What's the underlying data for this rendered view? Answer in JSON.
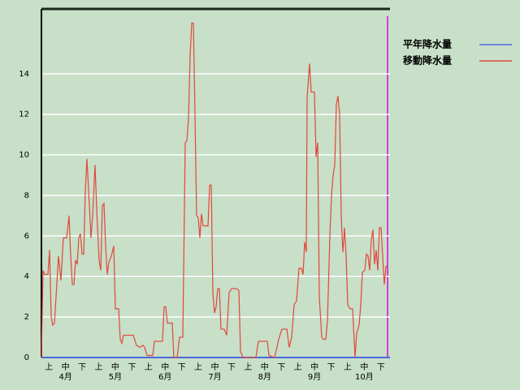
{
  "chart_data": {
    "type": "line",
    "categories": [
      "上",
      "中",
      "下",
      "上",
      "中",
      "下",
      "上",
      "中",
      "下",
      "上",
      "中",
      "下",
      "上",
      "中",
      "下",
      "上",
      "中",
      "下",
      "上",
      "中",
      "下"
    ],
    "months": [
      "4月",
      "5月",
      "6月",
      "7月",
      "8月",
      "9月",
      "10月"
    ],
    "xlim": [
      0,
      214.5
    ],
    "ylim": [
      0,
      17.2
    ],
    "yticks": [
      0,
      2,
      4,
      6,
      8,
      10,
      12,
      14
    ],
    "grid": true,
    "series": [
      {
        "name": "平年降水量",
        "color": "#4a6ae0",
        "x": [
          0,
          214.5
        ],
        "values": [
          0,
          0
        ]
      },
      {
        "name": "移動降水量",
        "color": "#e0483c",
        "x": [
          0,
          1,
          2,
          4,
          5,
          6,
          7,
          8,
          9,
          10.5,
          12,
          13.5,
          15.5,
          17,
          18,
          19,
          20,
          21,
          22,
          23,
          24,
          25,
          26,
          27,
          28,
          29.5,
          30.5,
          31.5,
          33,
          34,
          35.5,
          36.5,
          37.5,
          38.5,
          39.5,
          40.5,
          41.5,
          43,
          44.5,
          45.5,
          47.5,
          48.5,
          49.5,
          50.5,
          56.5,
          58.5,
          60.5,
          62.5,
          63.5,
          65,
          68.5,
          69.5,
          72.5,
          74.5,
          75.5,
          76.5,
          77.5,
          80.5,
          81.5,
          83.5,
          85,
          87,
          88.5,
          89.5,
          90.5,
          91.5,
          92.5,
          93.5,
          94.5,
          95.5,
          96.5,
          97.5,
          98.5,
          99.5,
          102.5,
          103.5,
          104.5,
          105.5,
          106.5,
          107.5,
          108.5,
          109.5,
          110.5,
          112.5,
          114,
          115.5,
          117,
          120,
          121.5,
          122.5,
          124,
          132,
          133.5,
          139,
          140,
          143.5,
          146,
          148,
          151,
          152.5,
          154,
          155.5,
          157,
          158.5,
          160,
          161,
          162,
          163,
          163.5,
          165,
          166,
          168,
          169,
          170,
          171,
          172.5,
          173.5,
          175,
          176,
          177.5,
          178.5,
          179.5,
          180.5,
          181.5,
          182.5,
          183.5,
          184.5,
          185.5,
          186.5,
          187.5,
          188.5,
          190,
          191.5,
          193,
          194,
          195.5,
          196.5,
          197.5,
          199,
          200,
          201,
          202,
          203,
          204,
          205,
          206,
          207,
          208,
          209,
          210,
          211,
          212,
          213
        ],
        "values": [
          0,
          4.3,
          4.1,
          4.1,
          5.3,
          2.0,
          1.6,
          1.7,
          3.0,
          5.0,
          3.8,
          5.9,
          5.9,
          7.0,
          5.0,
          3.6,
          3.6,
          4.8,
          4.6,
          5.9,
          6.1,
          5.1,
          5.1,
          8.2,
          9.8,
          7.5,
          5.9,
          7.0,
          9.5,
          7.3,
          4.8,
          4.3,
          7.5,
          7.6,
          5.5,
          4.1,
          4.7,
          5.0,
          5.5,
          2.4,
          2.4,
          0.9,
          0.7,
          1.1,
          1.1,
          0.6,
          0.5,
          0.6,
          0.5,
          0.1,
          0.1,
          0.8,
          0.8,
          0.8,
          2.5,
          2.5,
          1.7,
          1.7,
          0,
          0,
          1.0,
          1.0,
          10.6,
          10.7,
          11.8,
          14.9,
          16.5,
          16.5,
          12.0,
          7.0,
          6.9,
          5.9,
          7.1,
          6.5,
          6.5,
          8.5,
          8.5,
          3.2,
          2.2,
          2.5,
          3.4,
          3.4,
          1.4,
          1.4,
          1.1,
          3.2,
          3.4,
          3.4,
          3.3,
          0.3,
          0,
          0,
          0.8,
          0.8,
          0.1,
          0,
          0.9,
          1.4,
          1.4,
          0.5,
          1.0,
          2.6,
          2.8,
          4.4,
          4.4,
          4.1,
          5.7,
          5.2,
          12.8,
          14.5,
          13.1,
          13.1,
          9.9,
          10.6,
          3.0,
          1.0,
          0.9,
          0.9,
          1.8,
          6.0,
          8.0,
          9.0,
          9.5,
          12.5,
          12.9,
          12.0,
          6.9,
          5.2,
          6.4,
          5.0,
          2.6,
          2.4,
          2.4,
          0,
          1.2,
          1.6,
          2.6,
          4.2,
          4.3,
          5.1,
          5.0,
          4.3,
          5.8,
          6.3,
          4.6,
          5.3,
          4.3,
          6.4,
          6.4,
          5.0,
          3.6,
          4.5,
          4.5
        ]
      }
    ]
  }
}
